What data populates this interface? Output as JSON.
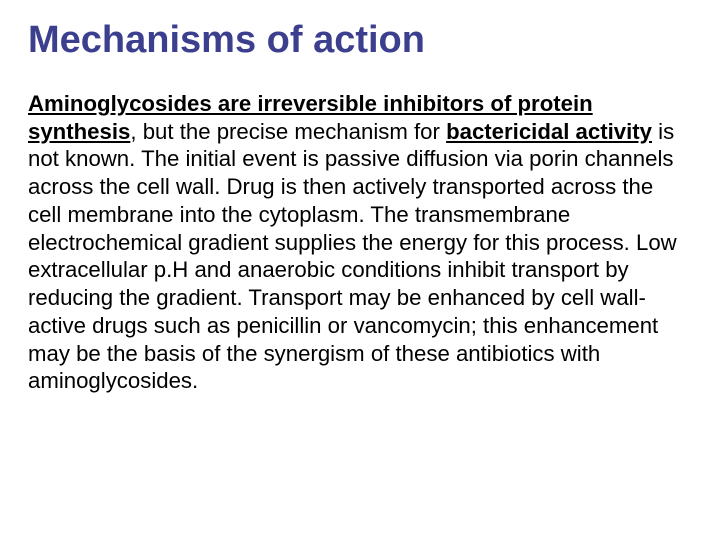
{
  "slide": {
    "title": "Mechanisms of action",
    "title_color": "#3b3f8e",
    "title_fontsize": 38,
    "body_fontsize": 22.2,
    "body_color": "#000000",
    "background_color": "#ffffff",
    "segments": [
      {
        "text": "Aminoglycosides are irreversible inhibitors of protein synthesis",
        "bold": true,
        "underline": true
      },
      {
        "text": ", but the precise mechanism for ",
        "bold": false,
        "underline": false
      },
      {
        "text": "bactericidal activity",
        "bold": true,
        "underline": true
      },
      {
        "text": " is not known. The initial event is passive diffusion via porin channels across the cell wall. Drug is then actively transported across the cell membrane into the cytoplasm. The transmembrane electrochemical gradient supplies the energy for this process. Low extracellular p.H and anaerobic conditions inhibit transport by reducing the gradient. Transport may be enhanced by cell wall-active drugs such as penicillin or vancomycin; this enhancement may be the basis of the synergism of these antibiotics with aminoglycosides.",
        "bold": false,
        "underline": false
      }
    ]
  }
}
